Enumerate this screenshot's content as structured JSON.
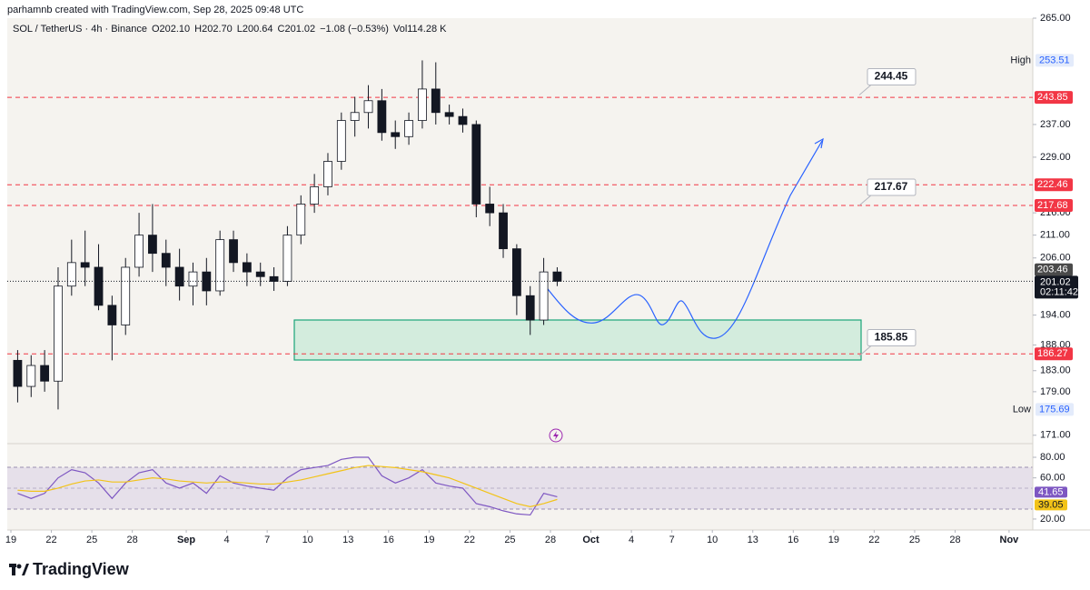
{
  "chart_data": {
    "type": "candlestick",
    "header": "parhamnb created with TradingView.com, Sep 28, 2025 09:48 UTC",
    "symbol": "SOL / TetherUS · 4h · Binance",
    "legend": [
      "O202.10",
      "H202.70",
      "L200.64",
      "C201.02",
      "−1.08 (−0.53%)",
      "Vol114.28 K"
    ],
    "logo": "TradingView",
    "log_scale": true,
    "up_color": "#ffffff",
    "down_color": "#131722",
    "wick_color": "#131722",
    "x": [
      "2025-08-19",
      "2025-08-20",
      "2025-08-21",
      "2025-08-22",
      "2025-08-23",
      "2025-08-24",
      "2025-08-25",
      "2025-08-26",
      "2025-08-27",
      "2025-08-28",
      "2025-08-29",
      "2025-08-30",
      "2025-08-31",
      "2025-09-01",
      "2025-09-02",
      "2025-09-03",
      "2025-09-04",
      "2025-09-05",
      "2025-09-06",
      "2025-09-07",
      "2025-09-08",
      "2025-09-09",
      "2025-09-10",
      "2025-09-11",
      "2025-09-12",
      "2025-09-13",
      "2025-09-14",
      "2025-09-15",
      "2025-09-16",
      "2025-09-17",
      "2025-09-18",
      "2025-09-19",
      "2025-09-20",
      "2025-09-21",
      "2025-09-22",
      "2025-09-23",
      "2025-09-24",
      "2025-09-25",
      "2025-09-26",
      "2025-09-27",
      "2025-09-28"
    ],
    "open": [
      185,
      180,
      184,
      181,
      200,
      205,
      204,
      196,
      192,
      204,
      211,
      207,
      204,
      200,
      203,
      199,
      210,
      205,
      203,
      202,
      201,
      211,
      218,
      222,
      228,
      238,
      240,
      243,
      235,
      234,
      238,
      246,
      240,
      239,
      237,
      218,
      216,
      208,
      198,
      193,
      203
    ],
    "high": [
      187,
      186,
      187,
      204,
      210,
      212,
      209,
      198,
      206,
      216,
      218,
      210,
      208,
      205,
      206,
      212,
      212,
      207,
      205,
      204,
      213,
      220,
      225,
      230,
      240,
      244,
      247,
      246,
      238,
      240,
      253.51,
      253,
      242,
      241,
      238,
      222,
      218,
      209,
      200,
      206,
      204
    ],
    "low": [
      177,
      178,
      179,
      175.69,
      198,
      200,
      195,
      185,
      190,
      202,
      203,
      200,
      197,
      196,
      196,
      198,
      203,
      200,
      200,
      199,
      200,
      209,
      216,
      220,
      226,
      234,
      236,
      233,
      231,
      232,
      236,
      237,
      237,
      235,
      215,
      213,
      206,
      194,
      190,
      192,
      200
    ],
    "close": [
      180,
      184,
      181,
      200,
      205,
      204,
      196,
      192,
      204,
      211,
      207,
      204,
      200,
      203,
      199,
      210,
      205,
      203,
      202,
      201,
      211,
      218,
      222,
      228,
      238,
      240,
      243,
      235,
      234,
      238,
      246,
      240,
      239,
      237,
      218,
      216,
      208,
      198,
      193,
      203,
      201.02
    ],
    "xlim": [
      "2025-08-19",
      "2025-11-02"
    ],
    "xticks": [
      {
        "value": "2025-08-19",
        "label": "19"
      },
      {
        "value": "2025-08-22",
        "label": "22"
      },
      {
        "value": "2025-08-25",
        "label": "25"
      },
      {
        "value": "2025-08-28",
        "label": "28"
      },
      {
        "value": "2025-09-01",
        "label": "Sep"
      },
      {
        "value": "2025-09-04",
        "label": "4"
      },
      {
        "value": "2025-09-07",
        "label": "7"
      },
      {
        "value": "2025-09-10",
        "label": "10"
      },
      {
        "value": "2025-09-13",
        "label": "13"
      },
      {
        "value": "2025-09-16",
        "label": "16"
      },
      {
        "value": "2025-09-19",
        "label": "19"
      },
      {
        "value": "2025-09-22",
        "label": "22"
      },
      {
        "value": "2025-09-25",
        "label": "25"
      },
      {
        "value": "2025-09-28",
        "label": "28"
      },
      {
        "value": "2025-10-01",
        "label": "Oct"
      },
      {
        "value": "2025-10-04",
        "label": "4"
      },
      {
        "value": "2025-10-07",
        "label": "7"
      },
      {
        "value": "2025-10-10",
        "label": "10"
      },
      {
        "value": "2025-10-13",
        "label": "13"
      },
      {
        "value": "2025-10-16",
        "label": "16"
      },
      {
        "value": "2025-10-19",
        "label": "19"
      },
      {
        "value": "2025-10-22",
        "label": "22"
      },
      {
        "value": "2025-10-25",
        "label": "25"
      },
      {
        "value": "2025-10-28",
        "label": "28"
      },
      {
        "value": "2025-11-01",
        "label": "Nov"
      }
    ],
    "ylim": [
      169.5,
      265
    ],
    "yticks": [
      {
        "value": 265,
        "label": "265.00"
      },
      {
        "value": 237,
        "label": "237.00"
      },
      {
        "value": 229,
        "label": "229.00"
      },
      {
        "value": 216,
        "label": "216.00"
      },
      {
        "value": 211,
        "label": "211.00"
      },
      {
        "value": 206,
        "label": "206.00"
      },
      {
        "value": 194,
        "label": "194.00"
      },
      {
        "value": 188,
        "label": "188.00"
      },
      {
        "value": 183,
        "label": "183.00"
      },
      {
        "value": 179,
        "label": "179.00"
      },
      {
        "value": 171,
        "label": "171.00"
      }
    ],
    "levels": [
      {
        "value": 243.85,
        "color": "#f23645"
      },
      {
        "value": 222.46,
        "color": "#f23645"
      },
      {
        "value": 217.68,
        "color": "#f23645"
      },
      {
        "value": 186.27,
        "color": "#f23645"
      }
    ],
    "annotations": [
      244.45,
      217.67,
      185.85
    ],
    "high_marker": {
      "label": "High",
      "value": 253.51
    },
    "low_marker": {
      "label": "Low",
      "value": 175.69
    },
    "prev_price": {
      "value": 203.46,
      "color": "#4a4a4a"
    },
    "last_price": {
      "value": 201.02,
      "countdown": "02:11:42",
      "color": "#131722"
    },
    "rsi": {
      "ylim": [
        12,
        91.5
      ],
      "yticks": [
        {
          "value": 80,
          "label": "80.00"
        },
        {
          "value": 60,
          "label": "60.00"
        },
        {
          "value": 20,
          "label": "20.00"
        }
      ],
      "series": [
        {
          "color": "#7e57c2",
          "values": [
            45,
            40,
            45,
            60,
            68,
            65,
            55,
            40,
            55,
            65,
            68,
            55,
            50,
            55,
            45,
            62,
            55,
            52,
            50,
            48,
            60,
            68,
            70,
            72,
            78,
            80,
            80,
            62,
            55,
            60,
            68,
            55,
            52,
            50,
            35,
            32,
            28,
            25,
            24,
            45,
            41.65
          ]
        },
        {
          "color": "#f2c318",
          "values": [
            48,
            47,
            47,
            50,
            54,
            57,
            58,
            56,
            56,
            58,
            60,
            59,
            57,
            56,
            55,
            56,
            56,
            55,
            54,
            54,
            56,
            58,
            61,
            64,
            67,
            70,
            72,
            71,
            70,
            68,
            66,
            63,
            60,
            55,
            50,
            45,
            40,
            35,
            32,
            35,
            39.05
          ]
        }
      ]
    }
  }
}
